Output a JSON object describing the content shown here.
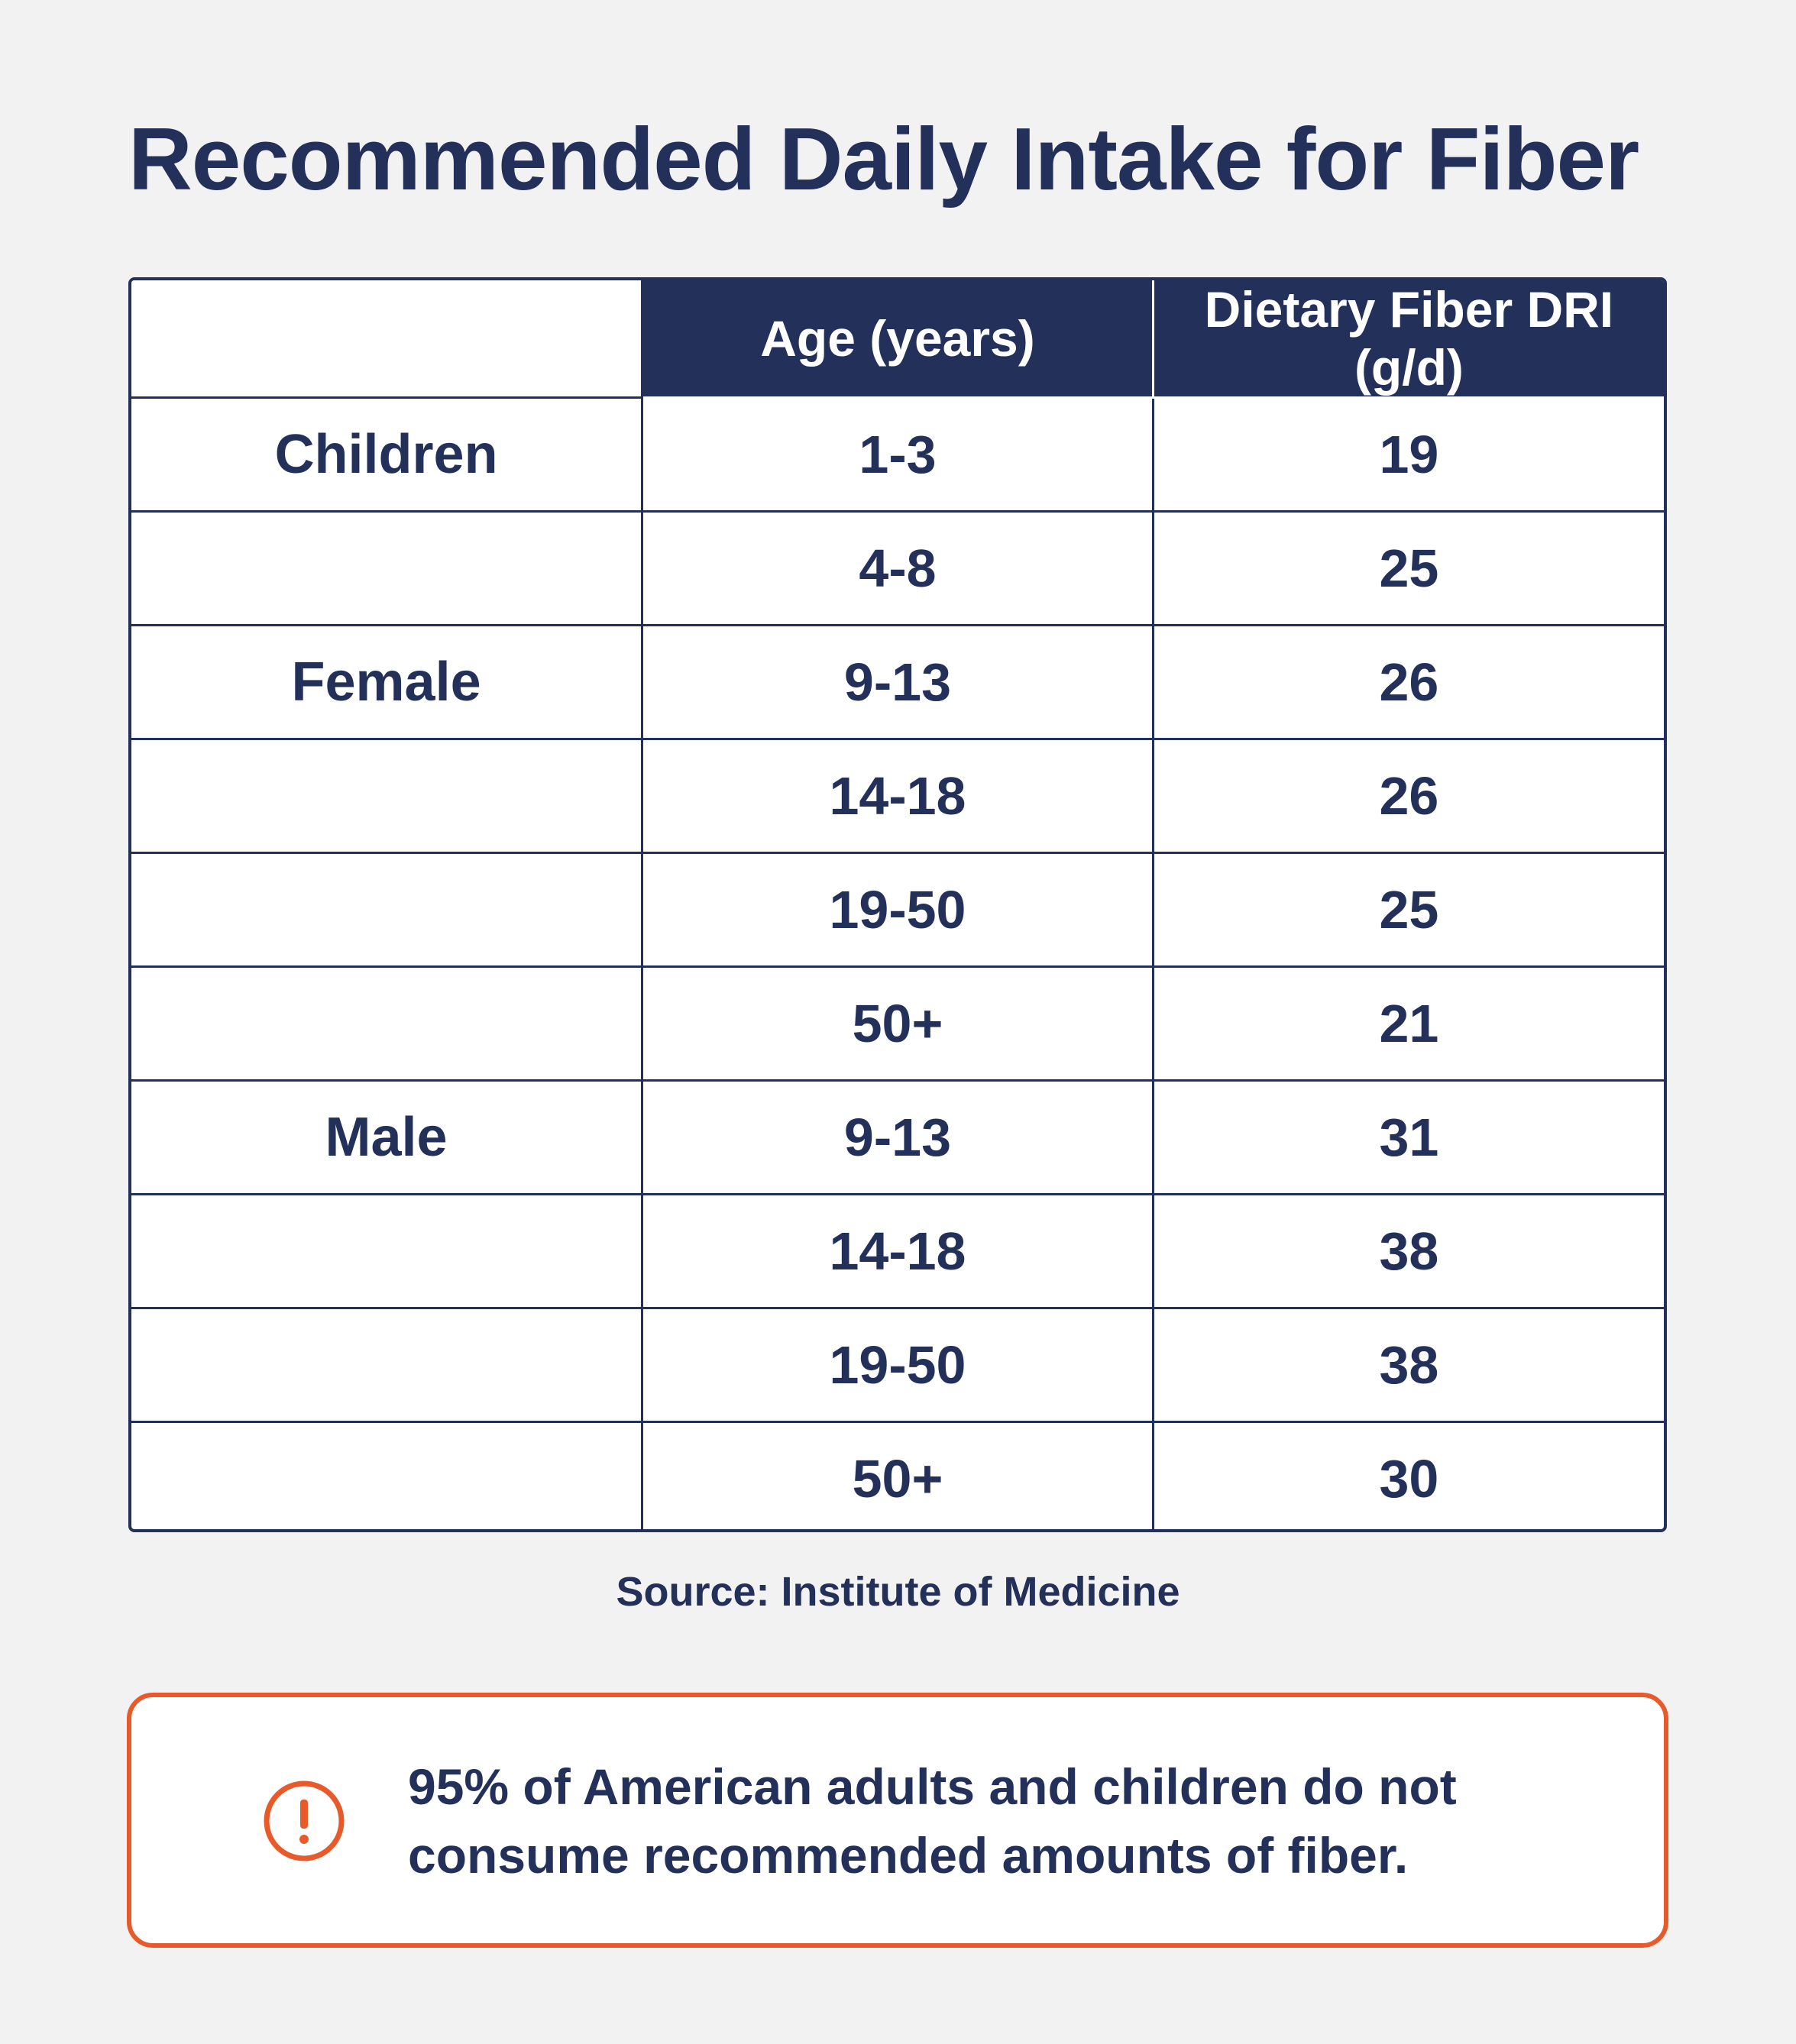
{
  "title": "Recommended Daily Intake for Fiber",
  "chart_data": {
    "type": "table",
    "title": "Recommended Daily Intake for Fiber",
    "columns": [
      "",
      "Age (years)",
      "Dietary Fiber DRI (g/d)"
    ],
    "rows": [
      {
        "group": "Children",
        "age": "1-3",
        "dri": "19"
      },
      {
        "group": "",
        "age": "4-8",
        "dri": "25"
      },
      {
        "group": "Female",
        "age": "9-13",
        "dri": "26"
      },
      {
        "group": "",
        "age": "14-18",
        "dri": "26"
      },
      {
        "group": "",
        "age": "19-50",
        "dri": "25"
      },
      {
        "group": "",
        "age": "50+",
        "dri": "21"
      },
      {
        "group": "Male",
        "age": "9-13",
        "dri": "31"
      },
      {
        "group": "",
        "age": "14-18",
        "dri": "38"
      },
      {
        "group": "",
        "age": "19-50",
        "dri": "38"
      },
      {
        "group": "",
        "age": "50+",
        "dri": "30"
      }
    ]
  },
  "source": "Source: Institute of Medicine",
  "callout": {
    "icon": "exclamation-circle-icon",
    "text": "95% of American adults and children do not consume recommended amounts of fiber."
  },
  "colors": {
    "navy": "#23305a",
    "accent": "#e85a2a",
    "background": "#f2f2f2"
  }
}
